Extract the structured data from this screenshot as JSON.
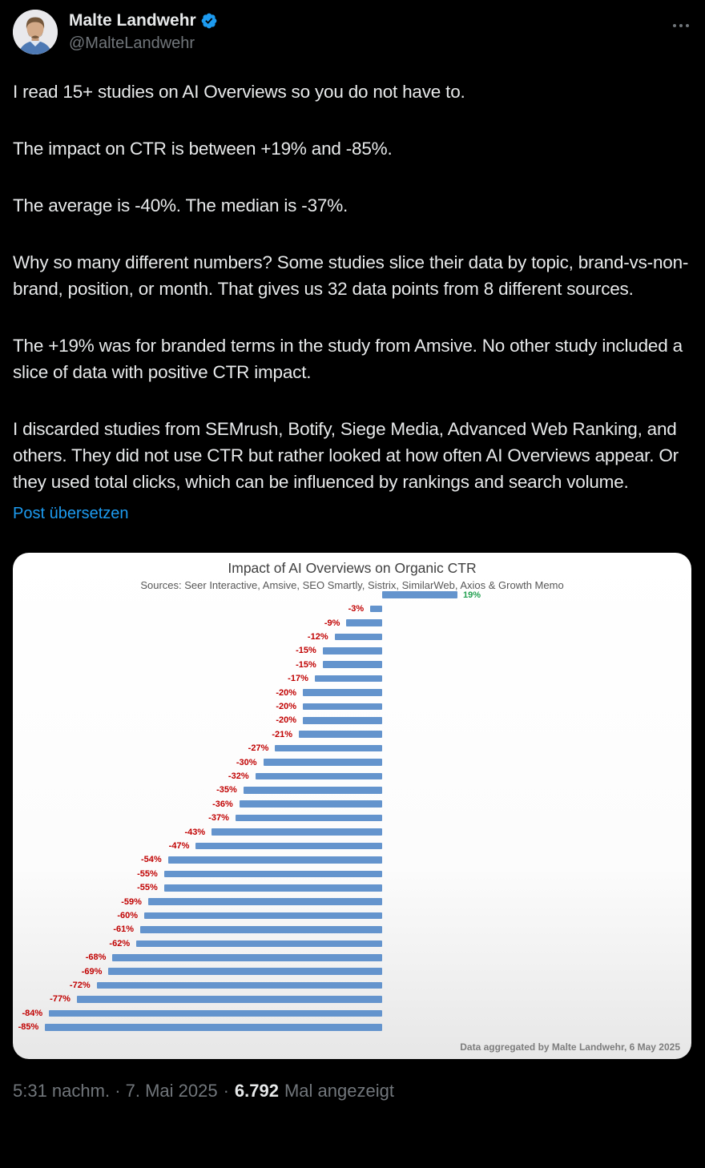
{
  "post": {
    "author": {
      "name": "Malte Landwehr",
      "handle": "@MalteLandwehr",
      "verified": true
    },
    "paragraphs": [
      "I read 15+ studies on AI Overviews so you do not have to.",
      "The impact on CTR is between +19% and -85%.",
      "The average is -40%. The median is -37%.",
      "Why so many different numbers? Some studies slice their data by topic, brand-vs-non-brand, position, or month. That gives us 32 data points from 8 different sources.",
      "The +19% was for branded terms in the study from Amsive. No other study included a slice of data with positive CTR impact.",
      "I discarded studies from SEMrush, Botify, Siege Media, Advanced Web Ranking, and others. They did not use CTR but rather looked at how often AI Overviews appear. Or they used total clicks, which can be influenced by rankings and search volume."
    ],
    "translate_label": "Post übersetzen",
    "footer": {
      "timestamp": "5:31 nachm. · 7. Mai 2025",
      "separator": "·",
      "views_count": "6.792",
      "views_label": "Mal angezeigt"
    }
  },
  "icons": {
    "verified": "verified-badge-blue-check-seal",
    "more": "more-horizontal-three-dots",
    "avatar": "profile-photo-man-with-beard-blue-shirt"
  },
  "colors": {
    "background": "#000000",
    "text_primary": "#e7e9ea",
    "text_secondary": "#71767b",
    "accent_blue": "#1d9bf0",
    "chart_card_top": "#ffffff",
    "chart_card_bottom": "#e7e7e7",
    "chart_bar": "#6494cd",
    "chart_negative_label": "#c00000",
    "chart_positive_label": "#22a050"
  },
  "chart_data": {
    "type": "bar",
    "orientation": "horizontal-diverging",
    "title": "Impact of AI Overviews on Organic CTR",
    "subtitle": "Sources: Seer Interactive, Amsive, SEO Smartly, Sistrix, SimilarWeb, Axios & Growth Memo",
    "footnote": "Data aggregated by Malte Landwehr, 6 May 2025",
    "xlabel": "",
    "ylabel": "",
    "xlim": [
      -85,
      19
    ],
    "grid": false,
    "axes_hidden": true,
    "bar_color": "#6494cd",
    "negative_label_color": "#c00000",
    "positive_label_color": "#22a050",
    "values": [
      19,
      -3,
      -9,
      -12,
      -15,
      -15,
      -17,
      -20,
      -20,
      -20,
      -21,
      -27,
      -30,
      -32,
      -35,
      -36,
      -37,
      -43,
      -47,
      -54,
      -55,
      -55,
      -59,
      -60,
      -61,
      -62,
      -68,
      -69,
      -72,
      -77,
      -84,
      -85
    ],
    "value_labels": [
      "19%",
      "-3%",
      "-9%",
      "-12%",
      "-15%",
      "-15%",
      "-17%",
      "-20%",
      "-20%",
      "-20%",
      "-21%",
      "-27%",
      "-30%",
      "-32%",
      "-35%",
      "-36%",
      "-37%",
      "-43%",
      "-47%",
      "-54%",
      "-55%",
      "-55%",
      "-59%",
      "-60%",
      "-61%",
      "-62%",
      "-68%",
      "-69%",
      "-72%",
      "-77%",
      "-84%",
      "-85%"
    ]
  }
}
